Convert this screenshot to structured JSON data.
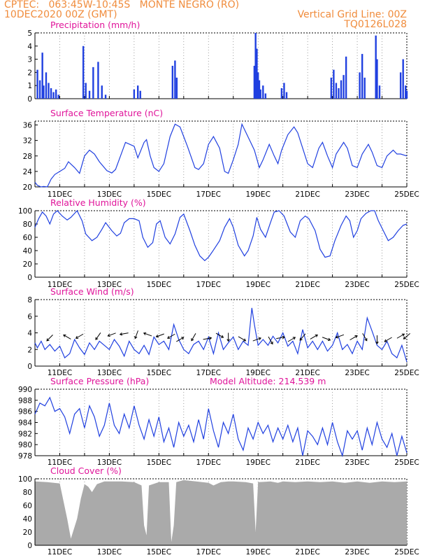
{
  "header": {
    "left_line1": "CPTEC:   063:45W-10:45S   MONTE NEGRO (RO)",
    "left_line2": "10DEC2020 00Z (GMT)",
    "right_line1": "Vertical Grid Line: 00Z",
    "right_line2": "TQ0126L028",
    "color": "#f08c3c"
  },
  "colors": {
    "title": "#e0149a",
    "line": "#2040e0",
    "bar": "#2040e0",
    "cloud": "#aaaaaa",
    "axis": "#000000"
  },
  "x_axis": {
    "start": "10DEC2020 00Z",
    "end": "25DEC2020 00Z",
    "tick_labels": [
      "11DEC",
      "13DEC",
      "15DEC",
      "17DEC",
      "19DEC",
      "21DEC",
      "23DEC",
      "25DEC"
    ],
    "tick_days": [
      1,
      3,
      5,
      7,
      9,
      11,
      13,
      15
    ]
  },
  "chart_data": [
    {
      "type": "bar",
      "title": "Precipitation (mm/h)",
      "ylim": [
        0,
        5
      ],
      "y_ticks": [
        "0",
        "1",
        "2",
        "3",
        "4",
        "5"
      ],
      "x_days": [
        0.1,
        0.2,
        0.3,
        0.35,
        0.45,
        0.55,
        0.65,
        0.75,
        0.85,
        0.95,
        1.95,
        2.05,
        2.2,
        2.35,
        2.55,
        2.7,
        2.85,
        4.0,
        4.15,
        4.25,
        5.55,
        5.65,
        5.72,
        8.85,
        8.9,
        8.95,
        9.0,
        9.05,
        9.1,
        9.2,
        9.3,
        9.95,
        10.05,
        10.15,
        11.95,
        12.05,
        12.15,
        12.25,
        12.35,
        12.45,
        12.55,
        13.1,
        13.2,
        13.3,
        13.75,
        13.8,
        13.9,
        14.75,
        14.85,
        14.95,
        15.0
      ],
      "values": [
        2.2,
        1.4,
        3.5,
        1.0,
        2.0,
        1.2,
        0.8,
        0.5,
        0.7,
        0.3,
        4.0,
        1.2,
        0.6,
        2.4,
        2.8,
        1.0,
        0.3,
        0.7,
        1.0,
        0.6,
        2.5,
        2.9,
        1.6,
        2.5,
        5.0,
        3.8,
        2.0,
        1.4,
        0.7,
        1.0,
        0.4,
        0.8,
        1.2,
        0.5,
        1.6,
        2.2,
        1.2,
        0.8,
        1.4,
        1.8,
        3.2,
        2.0,
        3.4,
        1.6,
        4.8,
        3.0,
        1.0,
        2.0,
        3.0,
        1.0,
        0.6
      ]
    },
    {
      "type": "line",
      "title": "Surface Temperature (nC)",
      "ylim": [
        20,
        37
      ],
      "y_ticks": [
        "20",
        "24",
        "28",
        "32",
        "36"
      ],
      "x_days": [
        0,
        0.1,
        0.25,
        0.35,
        0.5,
        0.65,
        0.8,
        1.0,
        1.2,
        1.35,
        1.6,
        1.8,
        2.0,
        2.2,
        2.4,
        2.6,
        2.9,
        3.1,
        3.25,
        3.45,
        3.65,
        4.0,
        4.15,
        4.4,
        4.5,
        4.65,
        4.8,
        5.0,
        5.2,
        5.45,
        5.65,
        5.85,
        6.0,
        6.15,
        6.45,
        6.6,
        6.8,
        7.0,
        7.2,
        7.45,
        7.65,
        7.8,
        8.0,
        8.2,
        8.35,
        8.7,
        8.85,
        9.05,
        9.2,
        9.45,
        9.65,
        9.8,
        9.95,
        10.2,
        10.45,
        10.6,
        10.8,
        11.0,
        11.2,
        11.45,
        11.6,
        11.8,
        12.0,
        12.15,
        12.45,
        12.6,
        12.8,
        13.0,
        13.2,
        13.45,
        13.6,
        13.8,
        14.0,
        14.2,
        14.45,
        14.6,
        14.75,
        15.0
      ],
      "values": [
        21.2,
        20.4,
        20.0,
        20.1,
        20.0,
        22.0,
        23.2,
        24.0,
        24.8,
        26.5,
        25.0,
        23.5,
        28.0,
        29.5,
        28.5,
        26.5,
        24.2,
        23.6,
        24.5,
        28.0,
        31.5,
        30.5,
        27.5,
        31.5,
        32.2,
        28.0,
        25.0,
        24.0,
        26.0,
        33.0,
        36.2,
        35.5,
        33.0,
        30.5,
        25.0,
        24.5,
        26.0,
        31.0,
        33.0,
        30.0,
        24.0,
        23.5,
        27.0,
        31.0,
        36.2,
        31.5,
        29.5,
        25.0,
        27.0,
        31.0,
        28.0,
        26.0,
        29.5,
        33.5,
        35.5,
        34.0,
        30.0,
        26.0,
        25.0,
        30.0,
        31.5,
        28.0,
        25.0,
        28.5,
        31.5,
        30.0,
        25.5,
        25.0,
        28.5,
        31.0,
        29.0,
        25.5,
        25.0,
        28.0,
        29.5,
        28.5,
        28.5,
        28.0
      ]
    },
    {
      "type": "line",
      "title": "Relative Humidity (%)",
      "ylim": [
        0,
        100
      ],
      "y_ticks": [
        "0",
        "20",
        "40",
        "60",
        "80",
        "100"
      ],
      "x_days": [
        0,
        0.15,
        0.3,
        0.45,
        0.6,
        0.75,
        0.9,
        1.1,
        1.3,
        1.45,
        1.7,
        1.9,
        2.05,
        2.3,
        2.5,
        2.7,
        2.85,
        3.1,
        3.3,
        3.45,
        3.6,
        3.8,
        4.0,
        4.2,
        4.35,
        4.55,
        4.75,
        4.9,
        5.05,
        5.25,
        5.45,
        5.65,
        5.85,
        6.0,
        6.25,
        6.45,
        6.65,
        6.85,
        7.0,
        7.15,
        7.45,
        7.65,
        7.85,
        8.0,
        8.2,
        8.45,
        8.6,
        8.8,
        8.95,
        9.1,
        9.3,
        9.5,
        9.65,
        9.85,
        10.05,
        10.3,
        10.5,
        10.7,
        10.9,
        11.05,
        11.3,
        11.5,
        11.7,
        11.9,
        12.1,
        12.35,
        12.55,
        12.7,
        12.85,
        13.0,
        13.15,
        13.35,
        13.55,
        13.7,
        13.85,
        14.05,
        14.25,
        14.45,
        14.65,
        14.85,
        15.0
      ],
      "values": [
        75,
        88,
        98,
        92,
        80,
        95,
        100,
        92,
        86,
        90,
        100,
        85,
        65,
        55,
        60,
        72,
        82,
        70,
        62,
        66,
        82,
        88,
        88,
        85,
        60,
        45,
        52,
        80,
        85,
        60,
        50,
        65,
        90,
        95,
        70,
        48,
        32,
        25,
        30,
        38,
        55,
        75,
        88,
        75,
        48,
        32,
        40,
        62,
        90,
        72,
        60,
        82,
        98,
        100,
        92,
        68,
        60,
        85,
        92,
        88,
        70,
        42,
        30,
        32,
        55,
        78,
        92,
        85,
        60,
        70,
        88,
        96,
        100,
        100,
        85,
        70,
        55,
        60,
        70,
        78,
        80
      ]
    },
    {
      "type": "line",
      "title": "Surface Wind (m/s)",
      "ylim": [
        0,
        8
      ],
      "y_ticks": [
        "0",
        "2",
        "4",
        "6",
        "8"
      ],
      "vector_label": "wind direction arrows",
      "x_days": [
        0,
        0.1,
        0.25,
        0.4,
        0.6,
        0.8,
        1.0,
        1.2,
        1.4,
        1.6,
        1.8,
        2.0,
        2.2,
        2.4,
        2.6,
        2.8,
        3.0,
        3.2,
        3.4,
        3.6,
        3.8,
        4.0,
        4.2,
        4.4,
        4.6,
        4.8,
        5.0,
        5.2,
        5.4,
        5.6,
        5.8,
        6.0,
        6.2,
        6.4,
        6.6,
        6.8,
        7.0,
        7.2,
        7.4,
        7.6,
        7.8,
        8.0,
        8.2,
        8.4,
        8.6,
        8.75,
        8.85,
        9.0,
        9.2,
        9.4,
        9.6,
        9.8,
        10.0,
        10.2,
        10.4,
        10.6,
        10.8,
        11.0,
        11.2,
        11.4,
        11.6,
        11.8,
        12.0,
        12.2,
        12.4,
        12.6,
        12.8,
        13.0,
        13.2,
        13.4,
        13.6,
        13.8,
        14.0,
        14.2,
        14.4,
        14.6,
        14.8,
        15.0
      ],
      "values": [
        2.8,
        2.2,
        3.0,
        2.0,
        2.6,
        1.8,
        2.4,
        1.0,
        1.5,
        3.2,
        2.2,
        1.4,
        2.8,
        2.0,
        3.0,
        2.5,
        2.0,
        3.2,
        2.4,
        1.2,
        3.0,
        2.0,
        1.5,
        2.5,
        1.4,
        3.5,
        2.6,
        3.0,
        2.0,
        5.0,
        3.2,
        2.0,
        1.5,
        2.6,
        3.0,
        2.0,
        3.5,
        1.5,
        4.0,
        2.0,
        2.8,
        3.5,
        2.0,
        3.0,
        2.5,
        7.0,
        5.0,
        2.5,
        3.2,
        2.5,
        3.6,
        2.8,
        4.0,
        2.4,
        3.0,
        1.5,
        4.4,
        2.2,
        3.0,
        2.0,
        3.0,
        1.8,
        2.5,
        4.0,
        2.0,
        2.6,
        1.5,
        3.0,
        2.0,
        5.8,
        4.2,
        2.5,
        2.0,
        3.0,
        1.5,
        1.0,
        2.5,
        0.5
      ],
      "arrow_days": [
        0.6,
        1.3,
        1.8,
        2.55,
        3.1,
        3.6,
        4.1,
        4.55,
        5.05,
        5.5,
        5.85,
        6.4,
        6.95,
        7.45,
        7.8,
        8.35,
        8.95,
        9.5,
        9.9,
        10.35,
        10.8,
        11.25,
        11.75,
        12.3,
        12.85,
        13.3,
        13.8,
        14.25,
        14.75,
        15.0
      ],
      "arrow_levels": [
        3.4,
        3.5,
        3.6,
        3.6,
        3.8,
        3.9,
        3.8,
        3.8,
        3.7,
        3.6,
        3.2,
        3.5,
        3.3,
        3.7,
        3.5,
        3.3,
        3.2,
        3.1,
        3.4,
        3.2,
        3.5,
        3.5,
        3.3,
        3.6,
        3.4,
        3.5,
        3.2,
        3.2,
        3.6,
        3.6
      ],
      "arrow_directions_deg": [
        225,
        150,
        210,
        235,
        200,
        190,
        250,
        160,
        200,
        210,
        30,
        240,
        10,
        330,
        270,
        330,
        20,
        300,
        10,
        30,
        230,
        30,
        340,
        200,
        30,
        300,
        270,
        210,
        30,
        220
      ]
    },
    {
      "type": "line",
      "title": "Surface Pressure (hPa)",
      "annotation": "Model Altitude: 214.539  m",
      "ylim": [
        978,
        990
      ],
      "y_ticks": [
        "978",
        "980",
        "982",
        "984",
        "986",
        "988",
        "990"
      ],
      "x_days": [
        0,
        0.2,
        0.4,
        0.6,
        0.8,
        1.0,
        1.2,
        1.4,
        1.6,
        1.8,
        2.0,
        2.2,
        2.4,
        2.6,
        2.8,
        3.0,
        3.2,
        3.4,
        3.6,
        3.8,
        4.0,
        4.2,
        4.4,
        4.6,
        4.8,
        5.0,
        5.2,
        5.4,
        5.6,
        5.8,
        6.0,
        6.2,
        6.4,
        6.6,
        6.8,
        7.0,
        7.2,
        7.4,
        7.6,
        7.8,
        8.0,
        8.2,
        8.4,
        8.6,
        8.8,
        9.0,
        9.2,
        9.4,
        9.6,
        9.8,
        10.0,
        10.2,
        10.4,
        10.6,
        10.8,
        11.0,
        11.2,
        11.4,
        11.6,
        11.8,
        12.0,
        12.2,
        12.4,
        12.6,
        12.8,
        13.0,
        13.2,
        13.4,
        13.6,
        13.8,
        14.0,
        14.2,
        14.4,
        14.6,
        14.8,
        15.0
      ],
      "values": [
        985.5,
        987.5,
        987.0,
        988.5,
        986.0,
        986.5,
        985.0,
        982.0,
        985.5,
        986.5,
        983.0,
        987.0,
        985.0,
        981.5,
        983.5,
        987.5,
        983.5,
        982.0,
        985.5,
        983.0,
        987.0,
        983.5,
        981.0,
        984.5,
        981.5,
        985.0,
        980.5,
        983.0,
        979.5,
        984.0,
        981.5,
        983.5,
        980.5,
        984.5,
        981.0,
        986.5,
        982.5,
        979.5,
        984.0,
        982.0,
        985.5,
        981.0,
        979.0,
        983.0,
        981.0,
        984.0,
        982.0,
        983.5,
        980.5,
        983.0,
        981.0,
        983.5,
        980.5,
        983.0,
        978.0,
        982.5,
        981.5,
        980.0,
        983.0,
        980.0,
        984.0,
        980.5,
        978.0,
        982.5,
        981.0,
        982.5,
        979.0,
        983.0,
        980.0,
        984.0,
        981.0,
        979.5,
        982.0,
        978.0,
        981.5,
        978.5
      ]
    },
    {
      "type": "area",
      "title": "Cloud Cover (%)",
      "ylim": [
        0,
        100
      ],
      "y_ticks": [
        "0",
        "20",
        "40",
        "60",
        "80",
        "100"
      ],
      "x_days": [
        0,
        0.5,
        1.0,
        1.3,
        1.45,
        1.7,
        1.85,
        2.0,
        2.15,
        2.3,
        2.5,
        2.8,
        3.0,
        3.5,
        4.0,
        4.3,
        4.4,
        4.5,
        4.6,
        5.0,
        5.4,
        5.5,
        5.6,
        5.7,
        6.0,
        6.5,
        7.0,
        7.2,
        7.5,
        7.8,
        8.0,
        8.5,
        8.8,
        8.9,
        9.0,
        9.5,
        9.8,
        10.0,
        10.5,
        11.0,
        11.5,
        12.0,
        12.5,
        13.0,
        13.5,
        14.0,
        14.5,
        15.0
      ],
      "values": [
        96,
        95,
        93,
        40,
        10,
        40,
        70,
        92,
        88,
        80,
        92,
        96,
        96,
        96,
        95,
        90,
        30,
        15,
        90,
        95,
        95,
        5,
        30,
        95,
        98,
        96,
        94,
        90,
        95,
        96,
        96,
        95,
        93,
        20,
        95,
        96,
        94,
        96,
        95,
        96,
        95,
        96,
        94,
        96,
        94,
        96,
        95,
        96
      ]
    }
  ]
}
